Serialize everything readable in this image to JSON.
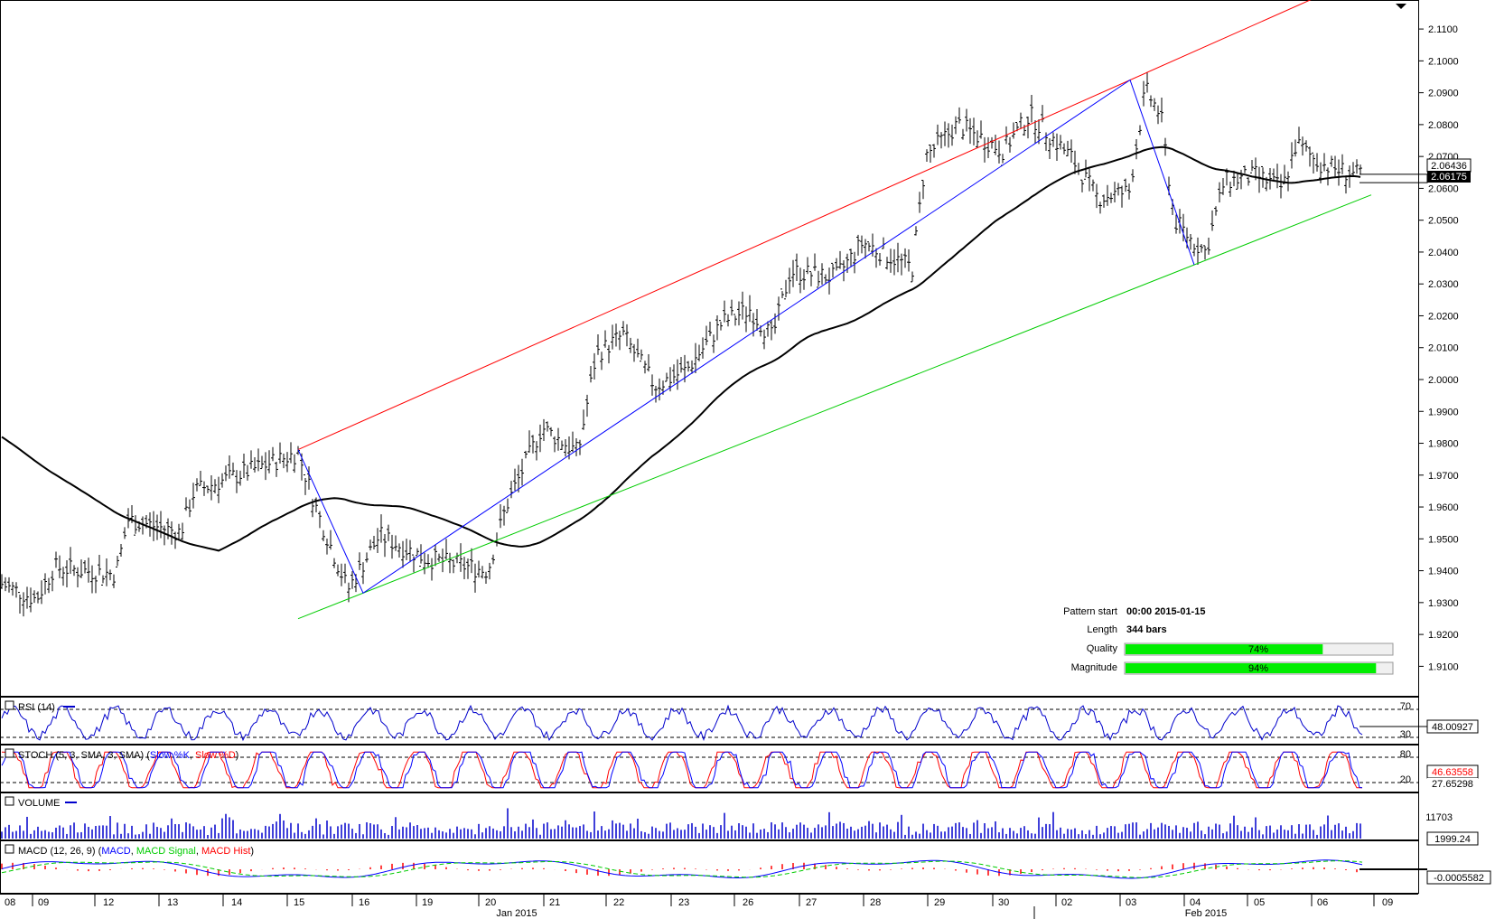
{
  "price_axis": {
    "ticks": [
      "2.1100",
      "2.1000",
      "2.0900",
      "2.0800",
      "2.0700",
      "2.0600",
      "2.0500",
      "2.0400",
      "2.0300",
      "2.0200",
      "2.0100",
      "2.0000",
      "1.9900",
      "1.9800",
      "1.9700",
      "1.9600",
      "1.9500",
      "1.9400",
      "1.9300",
      "1.9200",
      "1.9100"
    ],
    "current_bid": "2.06436",
    "current_sma": "2.06175"
  },
  "pattern_info": {
    "start_label": "Pattern start",
    "start_value": "00:00 2015-01-15",
    "length_label": "Length",
    "length_value": "344 bars",
    "quality_label": "Quality",
    "quality_value": "74%",
    "quality_pct": 74,
    "magnitude_label": "Magnitude",
    "magnitude_value": "94%",
    "magnitude_pct": 94
  },
  "rsi_panel": {
    "title": "RSI (14)",
    "level_high": "70",
    "level_low": "30",
    "value": "48.00927",
    "color": "#0000cc"
  },
  "stoch_panel": {
    "title_prefix": "STOCH (5, 3, SMA, 3, SMA) (",
    "slow_k": "Slow %K",
    "sep": ", ",
    "slow_d": "Slow %D",
    "title_suffix": ")",
    "level_high": "80",
    "level_low": "20",
    "value_k": "46.63558",
    "value_d": "27.65298"
  },
  "volume_panel": {
    "title": "VOLUME",
    "tick": "11703",
    "value": "1999.24"
  },
  "macd_panel": {
    "title_prefix": "MACD (12, 26, 9) (",
    "macd": "MACD",
    "sep": ", ",
    "signal": "MACD Signal",
    "hist": "MACD Hist",
    "title_suffix": ")",
    "value": "-0.0005582"
  },
  "time_axis": {
    "day_labels": [
      "08",
      "09",
      "12",
      "13",
      "14",
      "15",
      "16",
      "19",
      "20",
      "21",
      "22",
      "23",
      "26",
      "27",
      "28",
      "29",
      "30",
      "02",
      "03",
      "04",
      "05",
      "06",
      "09"
    ],
    "month_labels": [
      "Jan 2015",
      "Feb 2015"
    ]
  },
  "colors": {
    "upper_channel": "#ff0000",
    "lower_channel": "#00cc00",
    "pattern_line": "#0000ff",
    "sma": "#000000",
    "rsi": "#0000cc",
    "stoch_k": "#0000ff",
    "stoch_d": "#ff0000",
    "volume": "#0000cc",
    "macd": "#0000ff",
    "macd_signal": "#00cc00",
    "macd_hist": "#ff0000",
    "progress_fill": "#00ee00"
  },
  "chart_data": {
    "type": "candlestick",
    "instrument_axis": "price",
    "ylim": [
      1.905,
      2.114
    ],
    "anchor_closes": [
      {
        "date": "2015-01-08",
        "value": 1.936
      },
      {
        "date": "2015-01-09",
        "value": 1.931
      },
      {
        "date": "2015-01-12",
        "value": 1.955
      },
      {
        "date": "2015-01-13",
        "value": 1.962
      },
      {
        "date": "2015-01-14",
        "value": 1.972
      },
      {
        "date": "2015-01-15",
        "value": 1.977
      },
      {
        "date": "2015-01-16",
        "value": 1.934
      },
      {
        "date": "2015-01-19",
        "value": 1.946
      },
      {
        "date": "2015-01-20",
        "value": 1.942
      },
      {
        "date": "2015-01-21",
        "value": 1.985
      },
      {
        "date": "2015-01-22",
        "value": 2.013
      },
      {
        "date": "2015-01-23",
        "value": 1.998
      },
      {
        "date": "2015-01-26",
        "value": 2.022
      },
      {
        "date": "2015-01-27",
        "value": 2.035
      },
      {
        "date": "2015-01-28",
        "value": 2.035
      },
      {
        "date": "2015-01-29",
        "value": 2.076
      },
      {
        "date": "2015-01-30",
        "value": 2.075
      },
      {
        "date": "2015-02-02",
        "value": 2.068
      },
      {
        "date": "2015-02-03",
        "value": 2.092
      },
      {
        "date": "2015-02-04",
        "value": 2.037
      },
      {
        "date": "2015-02-05",
        "value": 2.066
      },
      {
        "date": "2015-02-06",
        "value": 2.064
      }
    ],
    "channel_upper": [
      {
        "date": "2015-01-15",
        "value": 1.978
      },
      {
        "date": "2015-02-03",
        "value": 2.094
      }
    ],
    "channel_lower": [
      {
        "date": "2015-01-16",
        "value": 1.933
      },
      {
        "date": "2015-02-04",
        "value": 2.036
      }
    ],
    "pattern_points": [
      {
        "date": "2015-01-15",
        "value": 1.978
      },
      {
        "date": "2015-01-16",
        "value": 1.933
      },
      {
        "date": "2015-02-03",
        "value": 2.094
      },
      {
        "date": "2015-02-04",
        "value": 2.036
      }
    ],
    "grid": false
  }
}
